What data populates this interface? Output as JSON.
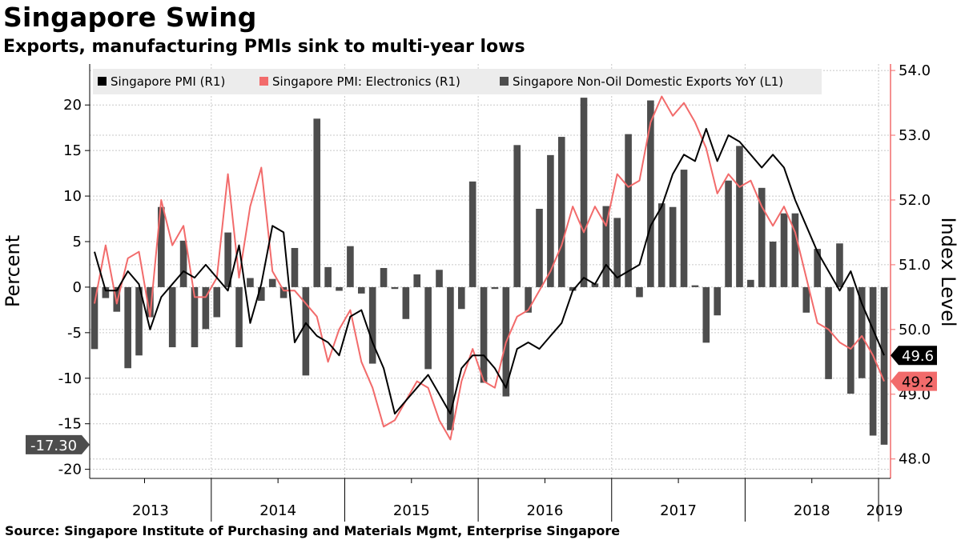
{
  "title": "Singapore Swing",
  "subtitle": "Exports, manufacturing PMIs sink to multi-year lows",
  "source": "Source: Singapore Institute of Purchasing and Materials Mgmt, Enterprise Singapore",
  "colors": {
    "pmi": "#000000",
    "electronics": "#f26b6b",
    "exports": "#4d4d4d",
    "axis_right": "#f26b6b",
    "grid": "#c8c8c8",
    "legend_bg": "#ececec"
  },
  "chart_data": {
    "type": "bar+line",
    "xlabel": "",
    "ylabel_left": "Percent",
    "ylabel_right": "Index Level",
    "ylim_left": [
      -21,
      24.5
    ],
    "ylim_right": [
      47.7,
      54.1
    ],
    "yticks_left": [
      "20",
      "15",
      "10",
      "5",
      "0",
      "-5",
      "-10",
      "-15",
      "-20"
    ],
    "yticks_right": [
      "54.0",
      "53.0",
      "52.0",
      "51.0",
      "50.0",
      "49.0",
      "48.0"
    ],
    "years": [
      "2013",
      "2014",
      "2015",
      "2016",
      "2017",
      "2018",
      "2019"
    ],
    "start_month": "2013-02",
    "legend": [
      {
        "key": "pmi",
        "label": "Singapore PMI  (R1)"
      },
      {
        "key": "electronics",
        "label": "Singapore PMI: Electronics (R1)"
      },
      {
        "key": "exports",
        "label": "Singapore Non-Oil Domestic Exports YoY (L1)"
      }
    ],
    "legend_position": "top",
    "grid": true,
    "series": [
      {
        "name": "Singapore Non-Oil Domestic Exports YoY (L1)",
        "kind": "bar",
        "axis": "left",
        "values": [
          -6.8,
          -1.2,
          -2.7,
          -8.9,
          -7.5,
          -3.3,
          8.8,
          -6.6,
          5.1,
          -6.6,
          -4.6,
          -3.3,
          6.0,
          -6.6,
          1.0,
          -1.5,
          0.9,
          -1.2,
          4.3,
          -9.7,
          18.5,
          2.2,
          -0.4,
          4.5,
          -0.7,
          -8.4,
          2.1,
          -0.2,
          -3.5,
          1.4,
          -9.0,
          1.9,
          -15.7,
          -2.4,
          11.6,
          -10.5,
          -0.2,
          -12.0,
          15.6,
          -2.8,
          8.6,
          14.5,
          16.5,
          -0.4,
          20.8,
          0.4,
          8.9,
          7.6,
          16.8,
          -1.1,
          20.5,
          9.2,
          8.8,
          12.9,
          0.2,
          -6.1,
          -3.1,
          11.7,
          15.5,
          0.8,
          10.9,
          5.0,
          8.1,
          8.1,
          -2.8,
          4.2,
          -10.1,
          4.8,
          -11.7,
          -10.0,
          -16.3,
          -17.3
        ]
      },
      {
        "name": "Singapore PMI  (R1)",
        "kind": "line",
        "axis": "right",
        "values": [
          51.2,
          50.6,
          50.6,
          50.9,
          50.7,
          50.0,
          50.5,
          50.7,
          50.9,
          50.8,
          51.0,
          50.8,
          50.6,
          51.3,
          50.1,
          50.7,
          51.6,
          51.5,
          49.8,
          50.1,
          49.9,
          49.8,
          49.6,
          50.2,
          50.3,
          49.8,
          49.4,
          48.7,
          48.9,
          49.1,
          49.3,
          49.0,
          48.7,
          49.4,
          49.6,
          49.6,
          49.4,
          49.1,
          49.7,
          49.8,
          49.7,
          49.9,
          50.1,
          50.6,
          50.8,
          50.7,
          51.0,
          50.8,
          50.9,
          51.0,
          51.6,
          51.9,
          52.4,
          52.7,
          52.6,
          53.1,
          52.6,
          53.0,
          52.9,
          52.7,
          52.5,
          52.7,
          52.5,
          52.0,
          51.6,
          51.2,
          50.9,
          50.6,
          50.9,
          50.4,
          50.0,
          49.6
        ]
      },
      {
        "name": "Singapore PMI: Electronics (R1)",
        "kind": "line",
        "axis": "right",
        "values": [
          50.4,
          51.3,
          50.4,
          51.1,
          51.2,
          50.2,
          52.0,
          51.3,
          51.6,
          50.5,
          50.5,
          50.8,
          52.4,
          50.8,
          51.9,
          52.5,
          50.9,
          50.6,
          50.6,
          50.4,
          50.2,
          49.5,
          50.0,
          50.3,
          49.5,
          49.1,
          48.5,
          48.6,
          48.9,
          49.2,
          49.1,
          48.6,
          48.3,
          49.2,
          49.7,
          49.2,
          49.1,
          49.8,
          50.2,
          50.3,
          50.6,
          50.9,
          51.3,
          51.9,
          51.5,
          51.9,
          51.6,
          52.4,
          52.2,
          52.3,
          53.2,
          53.6,
          53.3,
          53.5,
          53.2,
          52.8,
          52.1,
          52.4,
          52.2,
          52.3,
          51.9,
          51.6,
          51.9,
          51.5,
          50.8,
          50.1,
          50.0,
          49.8,
          49.7,
          49.9,
          49.6,
          49.2
        ]
      }
    ],
    "callouts": {
      "pmi_last": "49.6",
      "electronics_last": "49.2",
      "exports_last": "-17.30"
    }
  }
}
